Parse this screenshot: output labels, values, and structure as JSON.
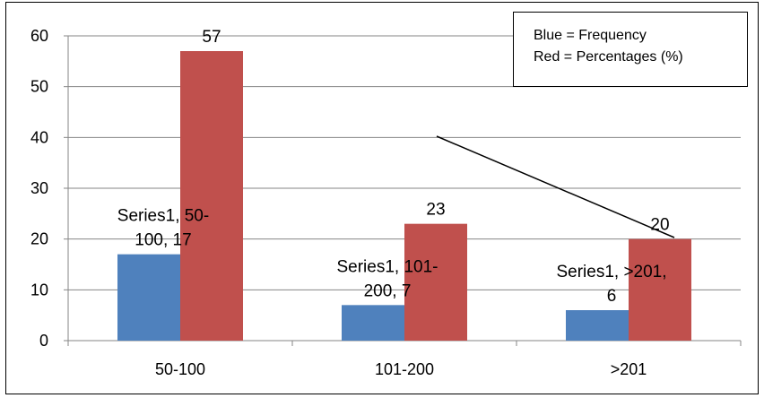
{
  "chart_data": {
    "type": "bar",
    "categories": [
      "50-100",
      "101-200",
      ">201"
    ],
    "series": [
      {
        "values": [
          17,
          7,
          6
        ],
        "color": "#4f81bd",
        "data_labels": [
          [
            "Series1, 50-",
            "100, 17"
          ],
          [
            "Series1, 101-",
            "200, 7"
          ],
          [
            "Series1, >201,",
            "6"
          ]
        ]
      },
      {
        "values": [
          57,
          23,
          20
        ],
        "color": "#c0504d",
        "data_labels": [
          [
            "57"
          ],
          [
            "23"
          ],
          [
            "20"
          ]
        ]
      }
    ],
    "ylim": [
      0,
      60
    ],
    "yticks": [
      0,
      10,
      20,
      30,
      40,
      50,
      60
    ],
    "grid": true,
    "legend_placement": "top-right",
    "annotation": {
      "lines": [
        "Blue = Frequency",
        "Red = Percentages (%)"
      ]
    }
  }
}
